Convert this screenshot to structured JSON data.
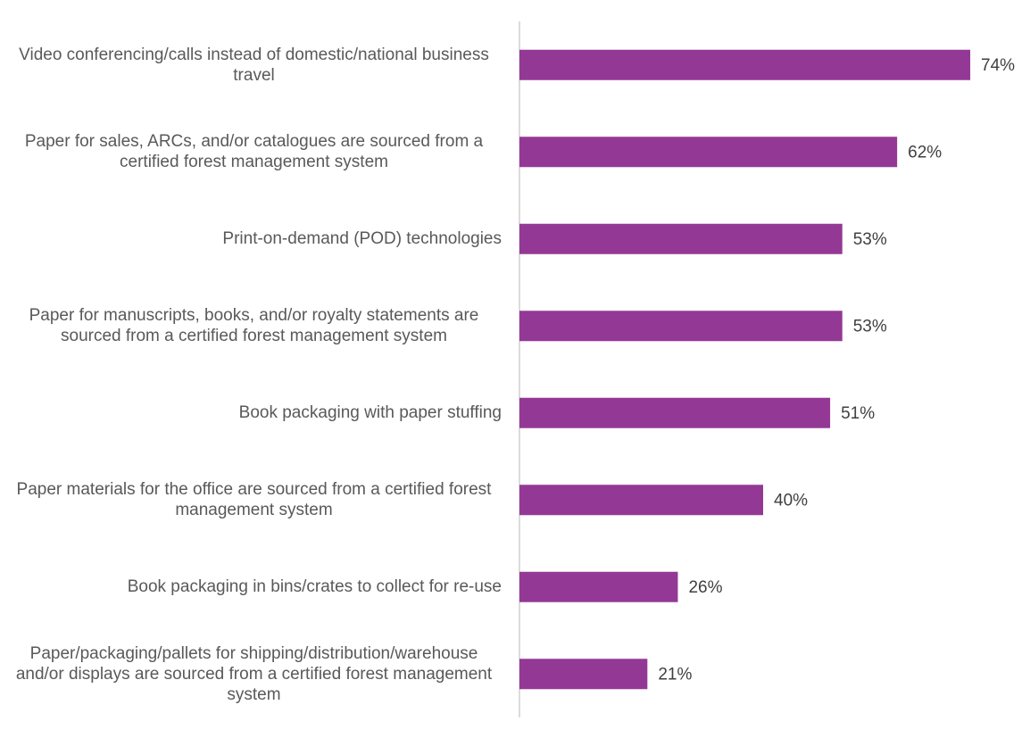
{
  "chart_data": {
    "type": "bar",
    "orientation": "horizontal",
    "categories": [
      "Video conferencing/calls instead of domestic/national business travel",
      "Paper for sales, ARCs, and/or catalogues are sourced from a certified forest management system",
      "Print-on-demand (POD) technologies",
      "Paper for manuscripts, books, and/or royalty statements are sourced from a certified forest management system",
      "Book packaging with paper stuffing",
      "Paper materials for the office are sourced from a certified forest management system",
      "Book packaging in bins/crates to collect for re-use",
      "Paper/packaging/pallets for shipping/distribution/warehouse and/or displays are sourced from a certified forest management system"
    ],
    "values": [
      74,
      62,
      53,
      53,
      51,
      40,
      26,
      21
    ],
    "value_labels": [
      "74%",
      "62%",
      "53%",
      "53%",
      "51%",
      "40%",
      "26%",
      "21%"
    ],
    "color": "#943896",
    "xlim": [
      0,
      80
    ]
  }
}
